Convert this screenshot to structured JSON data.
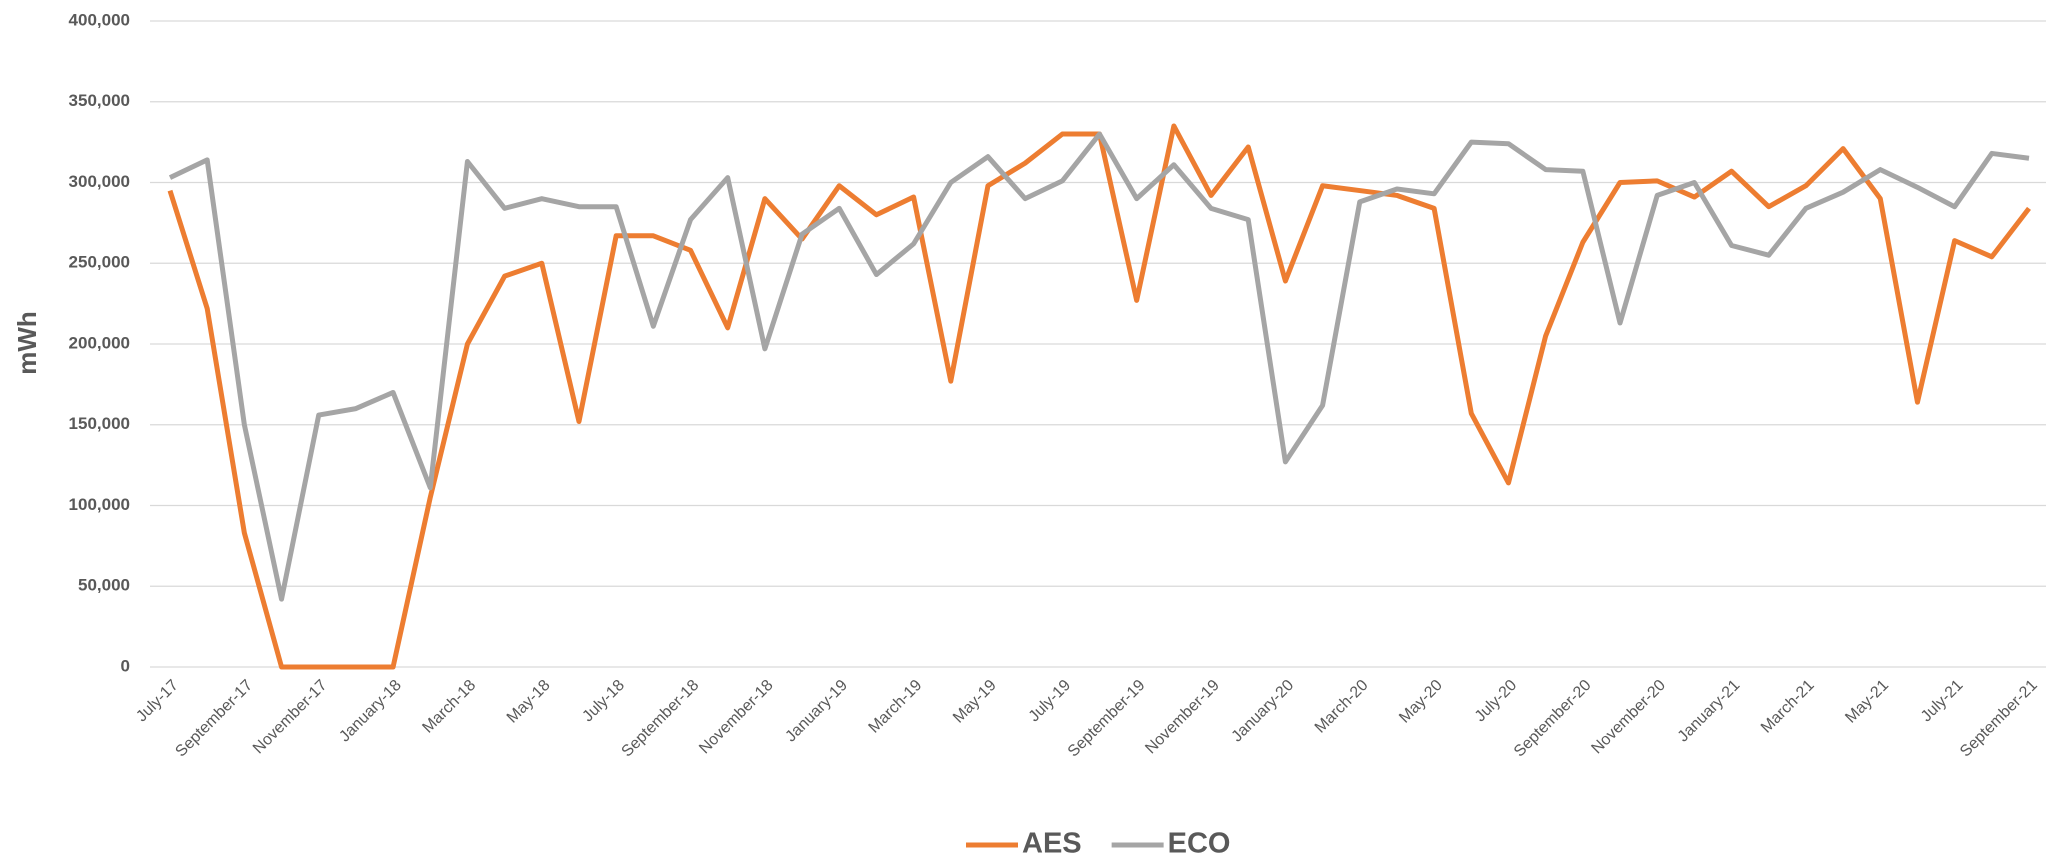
{
  "chart_data": {
    "type": "line",
    "y_label": "mWh",
    "categories": [
      "July-17",
      null,
      "September-17",
      null,
      "November-17",
      null,
      "January-18",
      null,
      "March-18",
      null,
      "May-18",
      null,
      "July-18",
      null,
      "September-18",
      null,
      "November-18",
      null,
      "January-19",
      null,
      "March-19",
      null,
      "May-19",
      null,
      "July-19",
      null,
      "September-19",
      null,
      "November-19",
      null,
      "January-20",
      null,
      "March-20",
      null,
      "May-20",
      null,
      "July-20",
      null,
      "September-20",
      null,
      "November-20",
      null,
      "January-21",
      null,
      "March-21",
      null,
      "May-21",
      null,
      "July-21",
      null,
      "September-21"
    ],
    "series": [
      {
        "name": "AES",
        "color": "#ed7d31",
        "values": [
          295000,
          222000,
          83000,
          0,
          0,
          0,
          0,
          105000,
          200000,
          242000,
          250000,
          152000,
          267000,
          267000,
          258000,
          210000,
          290000,
          265000,
          298000,
          280000,
          291000,
          177000,
          298000,
          312000,
          330000,
          330000,
          227000,
          335000,
          292000,
          322000,
          239000,
          298000,
          295000,
          292000,
          284000,
          157000,
          114000,
          205000,
          263000,
          300000,
          301000,
          291000,
          307000,
          285000,
          298000,
          321000,
          290000,
          164000,
          264000,
          254000,
          284000
        ]
      },
      {
        "name": "ECO",
        "color": "#a5a5a5",
        "values": [
          303000,
          314000,
          150000,
          42000,
          156000,
          160000,
          170000,
          111000,
          313000,
          284000,
          290000,
          285000,
          285000,
          211000,
          277000,
          303000,
          197000,
          268000,
          284000,
          243000,
          262000,
          300000,
          316000,
          290000,
          301000,
          330000,
          290000,
          311000,
          284000,
          277000,
          127000,
          162000,
          288000,
          296000,
          293000,
          325000,
          324000,
          308000,
          307000,
          213000,
          292000,
          300000,
          261000,
          255000,
          284000,
          294000,
          308000,
          297000,
          285000,
          318000,
          315000
        ]
      }
    ],
    "ylim": [
      0,
      400000
    ],
    "yticks": [
      0,
      {
        "value": 50000,
        "label": "50,000"
      },
      {
        "value": 100000,
        "label": "100,000"
      },
      {
        "value": 150000,
        "label": "150,000"
      },
      {
        "value": 200000,
        "label": "200,000"
      },
      {
        "value": 250000,
        "label": "250,000"
      },
      {
        "value": 300000,
        "label": "300,000"
      },
      {
        "value": 350000,
        "label": "350,000"
      },
      {
        "value": 400000,
        "label": "400,000"
      }
    ],
    "grid": true,
    "legend": "bottom"
  }
}
